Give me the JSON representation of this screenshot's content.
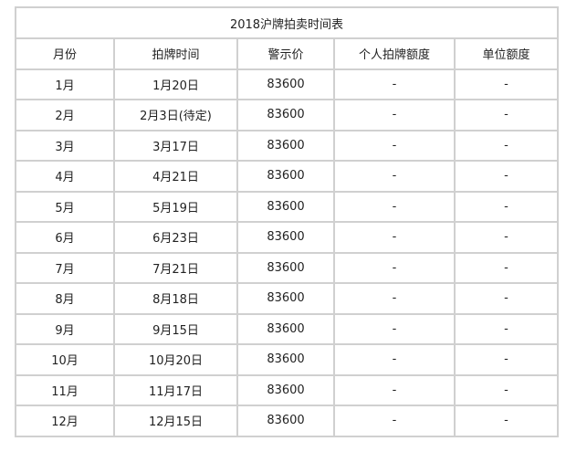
{
  "title": "2018沪牌拍卖时间表",
  "headers": [
    "月份",
    "拍牌时间",
    "警示价",
    "个人拍牌额度",
    "单位额度"
  ],
  "rows": [
    [
      "1月",
      "1月20日",
      "83600",
      "-",
      "-"
    ],
    [
      "2月",
      "2月3日(待定)",
      "83600",
      "-",
      "-"
    ],
    [
      "3月",
      "3月17日",
      "83600",
      "-",
      "-"
    ],
    [
      "4月",
      "4月21日",
      "83600",
      "-",
      "-"
    ],
    [
      "5月",
      "5月19日",
      "83600",
      "-",
      "-"
    ],
    [
      "6月",
      "6月23日",
      "83600",
      "-",
      "-"
    ],
    [
      "7月",
      "7月21日",
      "83600",
      "-",
      "-"
    ],
    [
      "8月",
      "8月18日",
      "83600",
      "-",
      "-"
    ],
    [
      "9月",
      "9月15日",
      "83600",
      "-",
      "-"
    ],
    [
      "10月",
      "10月20日",
      "83600",
      "-",
      "-"
    ],
    [
      "11月",
      "11月17日",
      "83600",
      "-",
      "-"
    ],
    [
      "12月",
      "12月15日",
      "83600",
      "-",
      "-"
    ]
  ]
}
